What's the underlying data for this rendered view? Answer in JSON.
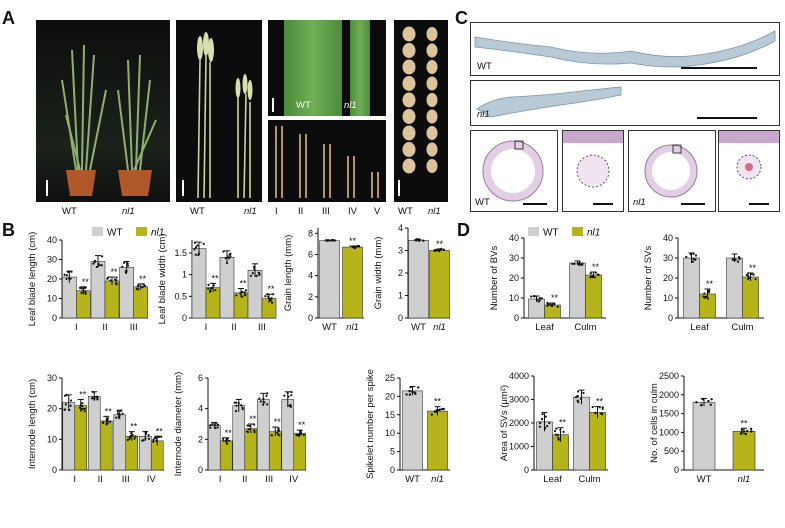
{
  "panels": {
    "a": "A",
    "b": "B",
    "c": "C",
    "d": "D"
  },
  "colors": {
    "wt": "#cfcfcf",
    "mutant": "#b5b41a",
    "dot": "#111111"
  },
  "photos": {
    "plants": {
      "labels": [
        "WT",
        "nl1"
      ]
    },
    "spikes": {
      "labels": [
        "WT",
        "nl1"
      ]
    },
    "leaves": {
      "labels": [
        "WT",
        "nl1"
      ]
    },
    "internodes": {
      "labels": [
        "I",
        "II",
        "III",
        "IV",
        "V"
      ]
    },
    "grains": {
      "labels": [
        "WT",
        "nl1"
      ]
    },
    "sections": {
      "labels": [
        "WT",
        "nl1",
        "WT",
        "nl1"
      ]
    }
  },
  "legend": {
    "wt": "WT",
    "mutant": "nl1"
  },
  "chart_data": [
    {
      "id": "b1",
      "type": "bar",
      "ylabel": "Leaf blade length (cm)",
      "ylim": [
        0,
        40
      ],
      "yticks": [
        0,
        10,
        20,
        30,
        40
      ],
      "categories": [
        "I",
        "II",
        "III"
      ],
      "series": [
        {
          "name": "WT",
          "values": [
            21,
            29,
            26
          ],
          "err": [
            3,
            3,
            3
          ]
        },
        {
          "name": "nl1",
          "values": [
            14,
            19,
            16
          ],
          "err": [
            2,
            2,
            1.5
          ]
        }
      ],
      "sig": [
        "**",
        "**",
        "**"
      ]
    },
    {
      "id": "b2",
      "type": "bar",
      "ylabel": "Leaf blade width (cm)",
      "ylim": [
        0,
        1.8
      ],
      "yticks": [
        0,
        0.5,
        1.0,
        1.5
      ],
      "categories": [
        "I",
        "II",
        "III"
      ],
      "series": [
        {
          "name": "WT",
          "values": [
            1.6,
            1.4,
            1.1
          ],
          "err": [
            0.15,
            0.15,
            0.15
          ]
        },
        {
          "name": "nl1",
          "values": [
            0.7,
            0.58,
            0.45
          ],
          "err": [
            0.1,
            0.1,
            0.1
          ]
        }
      ],
      "sig": [
        "**",
        "**",
        "**"
      ]
    },
    {
      "id": "b3",
      "type": "bar",
      "ylabel": "Grain length (mm)",
      "ylim": [
        0,
        8.5
      ],
      "yticks": [
        0,
        2,
        4,
        6,
        8
      ],
      "categories": [
        "WT",
        "nl1"
      ],
      "series": [
        {
          "name": "value",
          "values": [
            7.3,
            6.7
          ],
          "err": [
            0.05,
            0.1
          ]
        }
      ],
      "sig": [
        "",
        "**"
      ]
    },
    {
      "id": "b4",
      "type": "bar",
      "ylabel": "Grain width (mm)",
      "ylim": [
        0,
        4
      ],
      "yticks": [
        0,
        1,
        2,
        3,
        4
      ],
      "categories": [
        "WT",
        "nl1"
      ],
      "series": [
        {
          "name": "value",
          "values": [
            3.45,
            3.0
          ],
          "err": [
            0.05,
            0.07
          ]
        }
      ],
      "sig": [
        "",
        "**"
      ]
    },
    {
      "id": "b5",
      "type": "bar",
      "ylabel": "Internode length (cm)",
      "ylim": [
        0,
        30
      ],
      "yticks": [
        0,
        10,
        20,
        30
      ],
      "categories": [
        "I",
        "II",
        "III",
        "IV"
      ],
      "series": [
        {
          "name": "WT",
          "values": [
            22,
            24,
            18,
            11
          ],
          "err": [
            2.5,
            1.5,
            1.5,
            1.5
          ]
        },
        {
          "name": "nl1",
          "values": [
            21,
            16,
            11,
            9.5
          ],
          "err": [
            2,
            1.5,
            1.5,
            1.5
          ]
        }
      ],
      "sig": [
        "**",
        "**",
        "**",
        "**"
      ]
    },
    {
      "id": "b6",
      "type": "bar",
      "ylabel": "Internode diameter (mm)",
      "ylim": [
        0,
        6
      ],
      "yticks": [
        0,
        2,
        4,
        6
      ],
      "categories": [
        "I",
        "II",
        "III",
        "IV"
      ],
      "series": [
        {
          "name": "WT",
          "values": [
            2.9,
            4.2,
            4.6,
            4.6
          ],
          "err": [
            0.2,
            0.4,
            0.4,
            0.5
          ]
        },
        {
          "name": "nl1",
          "values": [
            1.9,
            2.7,
            2.5,
            2.4
          ],
          "err": [
            0.2,
            0.3,
            0.3,
            0.2
          ]
        }
      ],
      "sig": [
        "**",
        "**",
        "**",
        "**"
      ]
    },
    {
      "id": "b7",
      "type": "bar",
      "ylabel": "Spikelet number per spike",
      "ylim": [
        0,
        25
      ],
      "yticks": [
        0,
        5,
        10,
        15,
        20,
        25
      ],
      "categories": [
        "WT",
        "nl1"
      ],
      "series": [
        {
          "name": "value",
          "values": [
            21.5,
            16
          ],
          "err": [
            1.2,
            1.2
          ]
        }
      ],
      "sig": [
        "",
        "**"
      ]
    },
    {
      "id": "d1",
      "type": "bar",
      "ylabel": "Number of BVs",
      "ylim": [
        0,
        40
      ],
      "yticks": [
        0,
        10,
        20,
        30,
        40
      ],
      "categories": [
        "Leaf",
        "Culm"
      ],
      "series": [
        {
          "name": "WT",
          "values": [
            9.5,
            27.5
          ],
          "err": [
            1.5,
            1
          ]
        },
        {
          "name": "nl1",
          "values": [
            6.5,
            21.5
          ],
          "err": [
            1,
            1.5
          ]
        }
      ],
      "sig": [
        "**",
        "**"
      ]
    },
    {
      "id": "d2",
      "type": "bar",
      "ylabel": "Number of SVs",
      "ylim": [
        0,
        40
      ],
      "yticks": [
        0,
        10,
        20,
        30,
        40
      ],
      "categories": [
        "Leaf",
        "Culm"
      ],
      "series": [
        {
          "name": "WT",
          "values": [
            30,
            30
          ],
          "err": [
            2.5,
            2
          ]
        },
        {
          "name": "nl1",
          "values": [
            12,
            20.5
          ],
          "err": [
            2.5,
            2
          ]
        }
      ],
      "sig": [
        "**",
        "**"
      ]
    },
    {
      "id": "d3",
      "type": "bar",
      "ylabel": "Area of SVs (μm²)",
      "ylim": [
        0,
        4000
      ],
      "yticks": [
        0,
        1000,
        2000,
        3000,
        4000
      ],
      "categories": [
        "Leaf",
        "Culm"
      ],
      "series": [
        {
          "name": "WT",
          "values": [
            2050,
            3100
          ],
          "err": [
            400,
            300
          ]
        },
        {
          "name": "nl1",
          "values": [
            1500,
            2450
          ],
          "err": [
            300,
            250
          ]
        }
      ],
      "sig": [
        "**",
        "**"
      ]
    },
    {
      "id": "d4",
      "type": "bar",
      "ylabel": "No. of cells in culm",
      "ylim": [
        0,
        2500
      ],
      "yticks": [
        0,
        500,
        1000,
        1500,
        2000,
        2500
      ],
      "categories": [
        "WT",
        "nl1"
      ],
      "series": [
        {
          "name": "value",
          "values": [
            1800,
            1030
          ],
          "err": [
            100,
            80
          ]
        }
      ],
      "sig": [
        "",
        "**"
      ]
    }
  ]
}
